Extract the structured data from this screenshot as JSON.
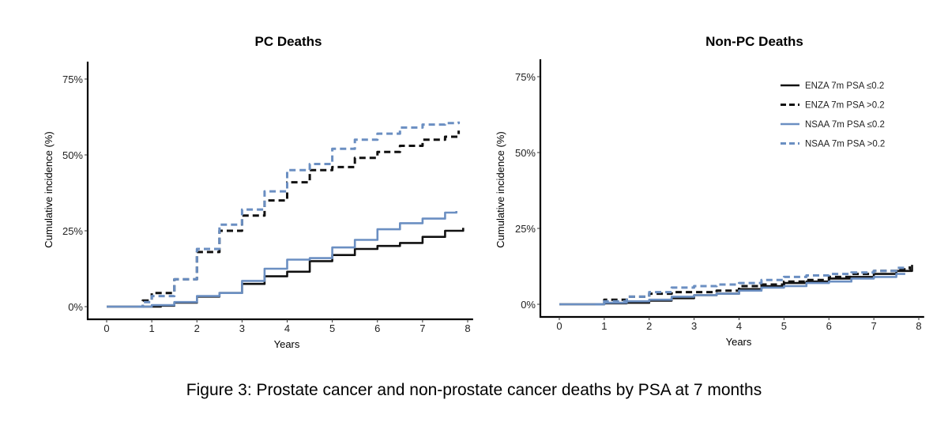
{
  "caption": "Figure 3: Prostate cancer and non-prostate cancer deaths by PSA at 7 months",
  "legend": [
    {
      "label": "ENZA 7m PSA ≤0.2",
      "color": "#111111",
      "dash": false
    },
    {
      "label": "ENZA 7m PSA >0.2",
      "color": "#111111",
      "dash": true
    },
    {
      "label": "NSAA 7m PSA ≤0.2",
      "color": "#6b8fc2",
      "dash": false
    },
    {
      "label": "NSAA 7m PSA >0.2",
      "color": "#6b8fc2",
      "dash": true
    }
  ],
  "chart_data": [
    {
      "type": "line",
      "title": "PC Deaths",
      "xlabel": "Years",
      "ylabel": "Cumulative incidence (%)",
      "xlim": [
        -0.6,
        8.2
      ],
      "ylim": [
        -0.03,
        0.79
      ],
      "xticks": [
        "0",
        "1",
        "2",
        "3",
        "4",
        "5",
        "6",
        "7",
        "8"
      ],
      "yticks": [
        {
          "v": 0,
          "label": "0%"
        },
        {
          "v": 0.25,
          "label": "25%"
        },
        {
          "v": 0.5,
          "label": "50%"
        },
        {
          "v": 0.75,
          "label": "75%"
        }
      ],
      "series": [
        {
          "name": "ENZA 7m PSA ≤0.2",
          "color": "#111111",
          "dash": false,
          "points": [
            [
              0,
              0
            ],
            [
              0.7,
              0
            ],
            [
              1.2,
              0.003
            ],
            [
              1.5,
              0.013
            ],
            [
              2,
              0.033
            ],
            [
              2.5,
              0.045
            ],
            [
              3,
              0.075
            ],
            [
              3.5,
              0.1
            ],
            [
              4,
              0.115
            ],
            [
              4.5,
              0.15
            ],
            [
              5,
              0.17
            ],
            [
              5.5,
              0.19
            ],
            [
              6,
              0.2
            ],
            [
              6.5,
              0.21
            ],
            [
              7,
              0.23
            ],
            [
              7.5,
              0.25
            ],
            [
              7.9,
              0.26
            ]
          ]
        },
        {
          "name": "ENZA 7m PSA >0.2",
          "color": "#111111",
          "dash": true,
          "points": [
            [
              0.7,
              0
            ],
            [
              0.8,
              0.02
            ],
            [
              1,
              0.045
            ],
            [
              1.5,
              0.09
            ],
            [
              2,
              0.18
            ],
            [
              2.5,
              0.25
            ],
            [
              3,
              0.3
            ],
            [
              3.5,
              0.35
            ],
            [
              4,
              0.41
            ],
            [
              4.5,
              0.45
            ],
            [
              5,
              0.46
            ],
            [
              5.5,
              0.49
            ],
            [
              6,
              0.51
            ],
            [
              6.5,
              0.53
            ],
            [
              7,
              0.55
            ],
            [
              7.5,
              0.56
            ],
            [
              7.8,
              0.58
            ]
          ]
        },
        {
          "name": "NSAA 7m PSA ≤0.2",
          "color": "#6b8fc2",
          "dash": false,
          "points": [
            [
              0,
              0
            ],
            [
              0.7,
              0
            ],
            [
              1,
              0.005
            ],
            [
              1.5,
              0.015
            ],
            [
              2,
              0.035
            ],
            [
              2.5,
              0.045
            ],
            [
              3,
              0.085
            ],
            [
              3.5,
              0.125
            ],
            [
              4,
              0.155
            ],
            [
              4.5,
              0.16
            ],
            [
              5,
              0.195
            ],
            [
              5.5,
              0.22
            ],
            [
              6,
              0.255
            ],
            [
              6.5,
              0.275
            ],
            [
              7,
              0.29
            ],
            [
              7.5,
              0.31
            ],
            [
              7.75,
              0.315
            ]
          ]
        },
        {
          "name": "NSAA 7m PSA >0.2",
          "color": "#6b8fc2",
          "dash": true,
          "points": [
            [
              0.7,
              0
            ],
            [
              0.8,
              0.015
            ],
            [
              1,
              0.035
            ],
            [
              1.5,
              0.09
            ],
            [
              2,
              0.19
            ],
            [
              2.5,
              0.27
            ],
            [
              3,
              0.32
            ],
            [
              3.5,
              0.38
            ],
            [
              4,
              0.45
            ],
            [
              4.5,
              0.47
            ],
            [
              5,
              0.52
            ],
            [
              5.5,
              0.55
            ],
            [
              6,
              0.57
            ],
            [
              6.5,
              0.59
            ],
            [
              7,
              0.6
            ],
            [
              7.5,
              0.605
            ],
            [
              7.8,
              0.61
            ]
          ]
        }
      ]
    },
    {
      "type": "line",
      "title": "Non-PC Deaths",
      "xlabel": "Years",
      "ylabel": "Cumulative incidence (%)",
      "xlim": [
        -0.6,
        8.2
      ],
      "ylim": [
        -0.03,
        0.79
      ],
      "xticks": [
        "0",
        "1",
        "2",
        "3",
        "4",
        "5",
        "6",
        "7",
        "8"
      ],
      "yticks": [
        {
          "v": 0,
          "label": "0%"
        },
        {
          "v": 0.25,
          "label": "25%"
        },
        {
          "v": 0.5,
          "label": "50%"
        },
        {
          "v": 0.75,
          "label": "75%"
        }
      ],
      "legend_position": "top-right",
      "series": [
        {
          "name": "ENZA 7m PSA ≤0.2",
          "color": "#111111",
          "dash": false,
          "points": [
            [
              0,
              0
            ],
            [
              0.8,
              0
            ],
            [
              1,
              0.003
            ],
            [
              1.5,
              0.005
            ],
            [
              2,
              0.012
            ],
            [
              2.5,
              0.02
            ],
            [
              3,
              0.03
            ],
            [
              3.5,
              0.035
            ],
            [
              4,
              0.05
            ],
            [
              4.5,
              0.06
            ],
            [
              5,
              0.07
            ],
            [
              5.5,
              0.075
            ],
            [
              6,
              0.085
            ],
            [
              6.5,
              0.09
            ],
            [
              7,
              0.1
            ],
            [
              7.5,
              0.11
            ],
            [
              7.85,
              0.13
            ]
          ]
        },
        {
          "name": "ENZA 7m PSA >0.2",
          "color": "#111111",
          "dash": true,
          "points": [
            [
              0.8,
              0
            ],
            [
              1,
              0.015
            ],
            [
              1.5,
              0.025
            ],
            [
              2,
              0.035
            ],
            [
              2.5,
              0.04
            ],
            [
              3,
              0.04
            ],
            [
              3.5,
              0.045
            ],
            [
              4,
              0.06
            ],
            [
              4.5,
              0.065
            ],
            [
              5,
              0.075
            ],
            [
              5.5,
              0.08
            ],
            [
              6,
              0.09
            ],
            [
              6.5,
              0.1
            ],
            [
              7,
              0.11
            ],
            [
              7.5,
              0.115
            ],
            [
              7.8,
              0.125
            ]
          ]
        },
        {
          "name": "NSAA 7m PSA ≤0.2",
          "color": "#6b8fc2",
          "dash": false,
          "points": [
            [
              0,
              0
            ],
            [
              0.8,
              0
            ],
            [
              1,
              0.005
            ],
            [
              1.5,
              0.01
            ],
            [
              2,
              0.015
            ],
            [
              2.5,
              0.025
            ],
            [
              3,
              0.03
            ],
            [
              3.5,
              0.035
            ],
            [
              4,
              0.045
            ],
            [
              4.5,
              0.055
            ],
            [
              5,
              0.06
            ],
            [
              5.5,
              0.07
            ],
            [
              6,
              0.075
            ],
            [
              6.5,
              0.085
            ],
            [
              7,
              0.09
            ],
            [
              7.5,
              0.1
            ],
            [
              7.7,
              0.1
            ]
          ]
        },
        {
          "name": "NSAA 7m PSA >0.2",
          "color": "#6b8fc2",
          "dash": true,
          "points": [
            [
              0.8,
              0
            ],
            [
              1,
              0.01
            ],
            [
              1.5,
              0.025
            ],
            [
              2,
              0.04
            ],
            [
              2.5,
              0.055
            ],
            [
              3,
              0.06
            ],
            [
              3.5,
              0.065
            ],
            [
              4,
              0.07
            ],
            [
              4.5,
              0.08
            ],
            [
              5,
              0.09
            ],
            [
              5.5,
              0.095
            ],
            [
              6,
              0.1
            ],
            [
              6.5,
              0.105
            ],
            [
              7,
              0.11
            ],
            [
              7.5,
              0.12
            ],
            [
              7.75,
              0.12
            ]
          ]
        }
      ]
    }
  ]
}
